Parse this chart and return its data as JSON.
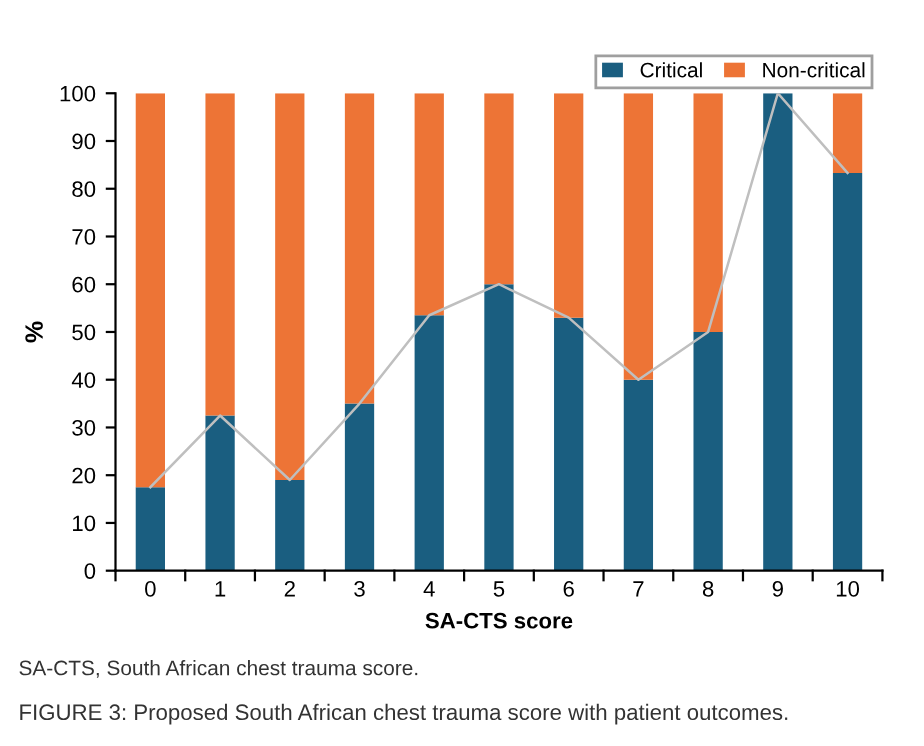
{
  "chart_data": {
    "type": "bar",
    "stacked": true,
    "xlabel": "SA-CTS score",
    "ylabel": "%",
    "categories": [
      "0",
      "1",
      "2",
      "3",
      "4",
      "5",
      "6",
      "7",
      "8",
      "9",
      "10"
    ],
    "series": [
      {
        "name": "Critical",
        "color": "#1a5e80",
        "values": [
          17.5,
          32.5,
          19,
          35,
          53.5,
          60,
          53,
          40,
          50,
          100,
          83.3
        ]
      },
      {
        "name": "Non-critical",
        "color": "#ed7436",
        "values": [
          82.5,
          67.5,
          81,
          65,
          46.5,
          40,
          47,
          60,
          50,
          0,
          16.7
        ]
      },
      {
        "type": "line",
        "color": "#bfbfbf",
        "values": [
          17.5,
          32.5,
          19,
          35,
          53.5,
          60,
          53,
          40,
          50,
          100,
          83.3
        ]
      }
    ],
    "ylim": [
      0,
      100
    ],
    "yticks": [
      0,
      10,
      20,
      30,
      40,
      50,
      60,
      70,
      80,
      90,
      100
    ],
    "grid": false,
    "legend": "top right",
    "marker": "none",
    "annotations": [
      "SA-CTS, South African chest trauma score.",
      "FIGURE 3: Proposed South African chest trauma score with patient outcomes."
    ]
  }
}
